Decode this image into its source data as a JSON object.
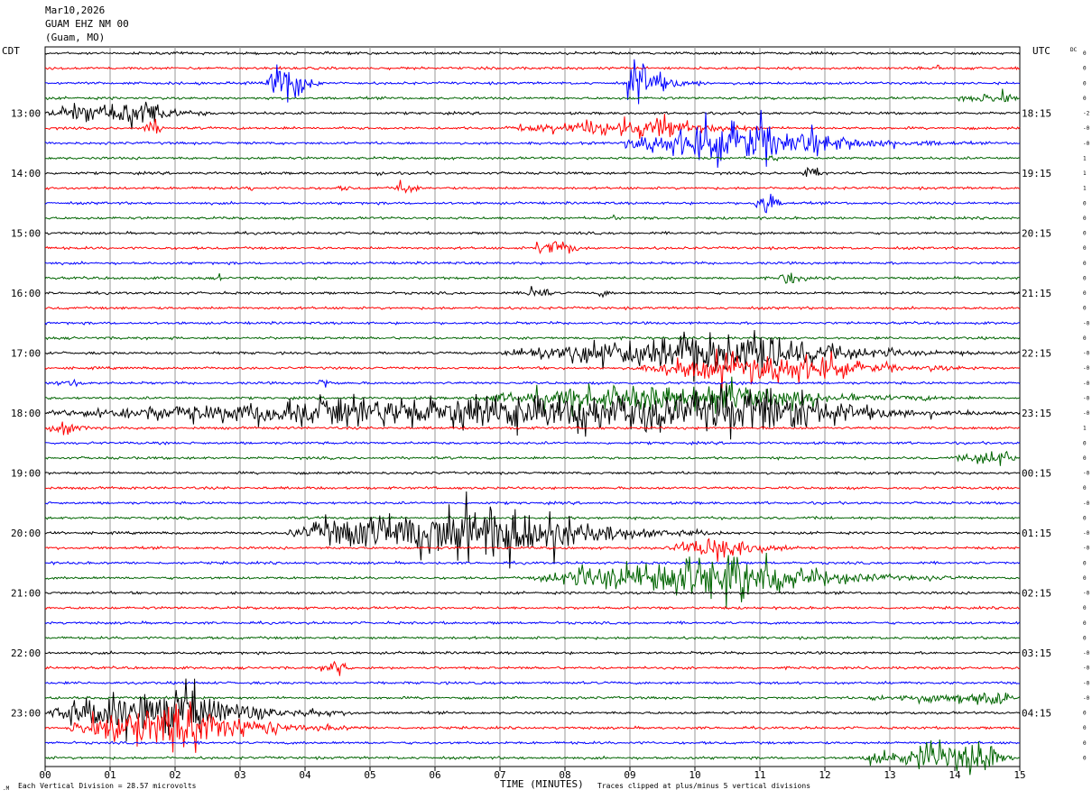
{
  "header": {
    "date": "Mar10,2026",
    "station": "GUAM EHZ NM 00",
    "location": "(Guam, MO)"
  },
  "left_axis_title": "CDT",
  "right_axis_title": "UTC",
  "dc_label": "DC",
  "footer": {
    "scale_note": "Each Vertical Division =   28.57 microvolts",
    "xlabel": "TIME (MINUTES)",
    "clip_note": "Traces clipped at plus/minus 5 vertical divisions"
  },
  "chart_data": {
    "type": "line",
    "subtype": "helicorder",
    "xlabel": "TIME (MINUTES)",
    "x_ticks": [
      "00",
      "01",
      "02",
      "03",
      "04",
      "05",
      "06",
      "07",
      "08",
      "09",
      "10",
      "11",
      "12",
      "13",
      "14",
      "15"
    ],
    "xlim": [
      0,
      15
    ],
    "rows_per_hour": 4,
    "row_count": 48,
    "trace_colors": [
      "#000000",
      "#ff0000",
      "#0000ff",
      "#006400"
    ],
    "left_hour_labels": [
      {
        "row": 4,
        "label": "13:00"
      },
      {
        "row": 8,
        "label": "14:00"
      },
      {
        "row": 12,
        "label": "15:00"
      },
      {
        "row": 16,
        "label": "16:00"
      },
      {
        "row": 20,
        "label": "17:00"
      },
      {
        "row": 24,
        "label": "18:00"
      },
      {
        "row": 28,
        "label": "19:00"
      },
      {
        "row": 32,
        "label": "20:00"
      },
      {
        "row": 36,
        "label": "21:00"
      },
      {
        "row": 40,
        "label": "22:00"
      },
      {
        "row": 44,
        "label": "23:00"
      }
    ],
    "right_hour_labels": [
      {
        "row": 4,
        "label": "18:15"
      },
      {
        "row": 8,
        "label": "19:15"
      },
      {
        "row": 12,
        "label": "20:15"
      },
      {
        "row": 16,
        "label": "21:15"
      },
      {
        "row": 20,
        "label": "22:15"
      },
      {
        "row": 24,
        "label": "23:15"
      },
      {
        "row": 28,
        "label": "00:15"
      },
      {
        "row": 32,
        "label": "01:15"
      },
      {
        "row": 36,
        "label": "02:15"
      },
      {
        "row": 40,
        "label": "03:15"
      },
      {
        "row": 44,
        "label": "04:15"
      }
    ],
    "dc_offsets": [
      "0",
      "0",
      "0",
      "0",
      "-2",
      "-0",
      "-0",
      "1",
      "1",
      "1",
      "0",
      "0",
      "0",
      "0",
      "0",
      "0",
      "0",
      "0",
      "-0",
      "0",
      "-0",
      "-0",
      "-0",
      "-0",
      "-0",
      "1",
      "0",
      "0",
      "-0",
      "0",
      "-0",
      "0",
      "-0",
      "-0",
      "0",
      "0",
      "-0",
      "0",
      "0",
      "0",
      "-0",
      "-0",
      "-0",
      "-0",
      "0",
      "0",
      "0",
      "0"
    ],
    "events": [
      {
        "row": 2,
        "start": 3.4,
        "peak": 3.7,
        "end": 4.4,
        "amp": 46,
        "clip": true
      },
      {
        "row": 2,
        "start": 8.9,
        "peak": 9.1,
        "end": 10.2,
        "amp": 44,
        "clip": true
      },
      {
        "row": 1,
        "start": 13.7,
        "peak": 13.75,
        "end": 13.85,
        "amp": 8
      },
      {
        "row": 3,
        "start": 14.0,
        "peak": 14.9,
        "end": 15.0,
        "amp": 10
      },
      {
        "row": 4,
        "start": 0.0,
        "peak": 1.5,
        "end": 2.8,
        "amp": 24
      },
      {
        "row": 5,
        "start": 7.0,
        "peak": 9.6,
        "end": 11.8,
        "amp": 14
      },
      {
        "row": 5,
        "start": 1.5,
        "peak": 1.7,
        "end": 1.9,
        "amp": 16
      },
      {
        "row": 6,
        "start": 8.8,
        "peak": 11.0,
        "end": 14.5,
        "amp": 30
      },
      {
        "row": 7,
        "start": 11.0,
        "peak": 11.2,
        "end": 11.6,
        "amp": 6
      },
      {
        "row": 8,
        "start": 11.6,
        "peak": 11.8,
        "end": 12.3,
        "amp": 14
      },
      {
        "row": 8,
        "start": 5.1,
        "peak": 5.2,
        "end": 5.3,
        "amp": 6
      },
      {
        "row": 9,
        "start": 5.4,
        "peak": 5.5,
        "end": 5.9,
        "amp": 16
      },
      {
        "row": 9,
        "start": 3.1,
        "peak": 3.15,
        "end": 3.3,
        "amp": 5
      },
      {
        "row": 9,
        "start": 4.5,
        "peak": 4.6,
        "end": 4.9,
        "amp": 5
      },
      {
        "row": 10,
        "start": 10.9,
        "peak": 11.1,
        "end": 11.5,
        "amp": 22
      },
      {
        "row": 11,
        "start": 8.7,
        "peak": 8.8,
        "end": 8.9,
        "amp": 4
      },
      {
        "row": 13,
        "start": 7.5,
        "peak": 7.9,
        "end": 8.5,
        "amp": 14
      },
      {
        "row": 15,
        "start": 11.3,
        "peak": 11.5,
        "end": 11.9,
        "amp": 14
      },
      {
        "row": 15,
        "start": 2.65,
        "peak": 2.7,
        "end": 2.75,
        "amp": 8
      },
      {
        "row": 16,
        "start": 7.4,
        "peak": 7.6,
        "end": 7.9,
        "amp": 20
      },
      {
        "row": 16,
        "start": 8.5,
        "peak": 8.6,
        "end": 8.8,
        "amp": 8
      },
      {
        "row": 20,
        "start": 7.0,
        "peak": 11.0,
        "end": 15.0,
        "amp": 30
      },
      {
        "row": 21,
        "start": 9.0,
        "peak": 11.5,
        "end": 15.0,
        "amp": 22
      },
      {
        "row": 22,
        "start": 0.0,
        "peak": 0.5,
        "end": 1.0,
        "amp": 5
      },
      {
        "row": 22,
        "start": 4.1,
        "peak": 4.3,
        "end": 4.5,
        "amp": 12
      },
      {
        "row": 23,
        "start": 6.5,
        "peak": 10.5,
        "end": 15.0,
        "amp": 22
      },
      {
        "row": 23,
        "start": 7.4,
        "peak": 7.6,
        "end": 7.9,
        "amp": 16
      },
      {
        "row": 24,
        "start": 0.0,
        "peak": 11.5,
        "end": 15.0,
        "amp": 32
      },
      {
        "row": 25,
        "start": 0.0,
        "peak": 0.3,
        "end": 1.2,
        "amp": 10
      },
      {
        "row": 27,
        "start": 14.0,
        "peak": 14.8,
        "end": 15.0,
        "amp": 14
      },
      {
        "row": 32,
        "start": 3.7,
        "peak": 7.2,
        "end": 10.5,
        "amp": 46,
        "clip": true
      },
      {
        "row": 33,
        "start": 9.5,
        "peak": 10.5,
        "end": 12.2,
        "amp": 18
      },
      {
        "row": 35,
        "start": 7.5,
        "peak": 10.8,
        "end": 14.5,
        "amp": 34
      },
      {
        "row": 41,
        "start": 4.2,
        "peak": 4.5,
        "end": 4.9,
        "amp": 12
      },
      {
        "row": 43,
        "start": 12.5,
        "peak": 14.8,
        "end": 15.0,
        "amp": 10
      },
      {
        "row": 44,
        "start": 0.0,
        "peak": 2.0,
        "end": 5.0,
        "amp": 38,
        "clip": true
      },
      {
        "row": 45,
        "start": 0.3,
        "peak": 2.2,
        "end": 5.0,
        "amp": 38,
        "clip": true
      },
      {
        "row": 47,
        "start": 12.5,
        "peak": 14.6,
        "end": 15.0,
        "amp": 24
      }
    ]
  }
}
